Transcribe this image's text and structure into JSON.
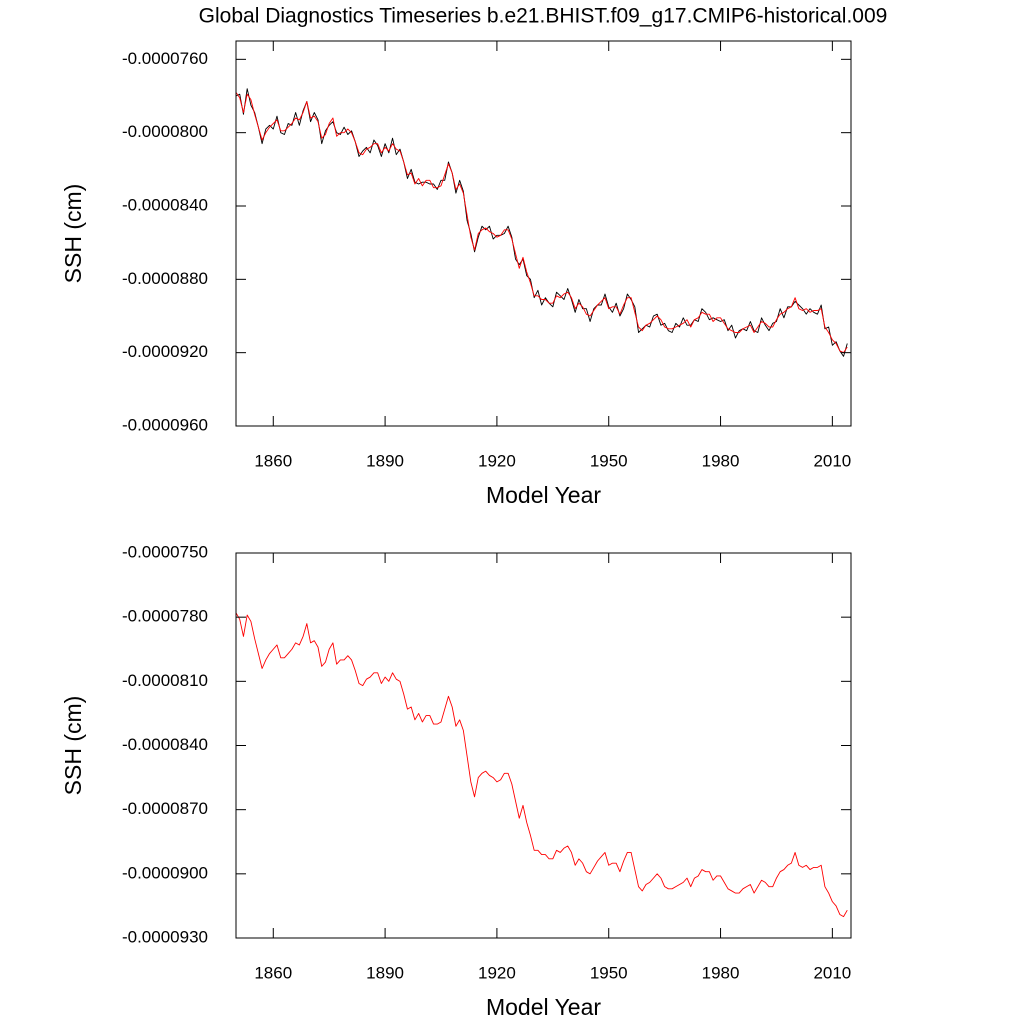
{
  "chart_data": [
    {
      "type": "line",
      "title": "Global Diagnostics Timeseries b.e21.BHIST.f09_g17.CMIP6-historical.009",
      "xlabel": "Model Year",
      "ylabel": "SSH (cm)",
      "xlim": [
        1850,
        2015
      ],
      "xticks": [
        1860,
        1890,
        1920,
        1950,
        1980,
        2010
      ],
      "ylim": [
        -9.6e-05,
        -7.5e-05
      ],
      "yticks": [
        {
          "value": -7.6e-05,
          "label": "-0.0000760"
        },
        {
          "value": -8e-05,
          "label": "-0.0000800"
        },
        {
          "value": -8.4e-05,
          "label": "-0.0000840"
        },
        {
          "value": -8.8e-05,
          "label": "-0.0000880"
        },
        {
          "value": -9.2e-05,
          "label": "-0.0000920"
        },
        {
          "value": -9.6e-05,
          "label": "-0.0000960"
        }
      ],
      "x": [
        1850,
        1851,
        1852,
        1853,
        1854,
        1855,
        1856,
        1857,
        1858,
        1859,
        1860,
        1861,
        1862,
        1863,
        1864,
        1865,
        1866,
        1867,
        1868,
        1869,
        1870,
        1871,
        1872,
        1873,
        1874,
        1875,
        1876,
        1877,
        1878,
        1879,
        1880,
        1881,
        1882,
        1883,
        1884,
        1885,
        1886,
        1887,
        1888,
        1889,
        1890,
        1891,
        1892,
        1893,
        1894,
        1895,
        1896,
        1897,
        1898,
        1899,
        1900,
        1901,
        1902,
        1903,
        1904,
        1905,
        1906,
        1907,
        1908,
        1909,
        1910,
        1911,
        1912,
        1913,
        1914,
        1915,
        1916,
        1917,
        1918,
        1919,
        1920,
        1921,
        1922,
        1923,
        1924,
        1925,
        1926,
        1927,
        1928,
        1929,
        1930,
        1931,
        1932,
        1933,
        1934,
        1935,
        1936,
        1937,
        1938,
        1939,
        1940,
        1941,
        1942,
        1943,
        1944,
        1945,
        1946,
        1947,
        1948,
        1949,
        1950,
        1951,
        1952,
        1953,
        1954,
        1955,
        1956,
        1957,
        1958,
        1959,
        1960,
        1961,
        1962,
        1963,
        1964,
        1965,
        1966,
        1967,
        1968,
        1969,
        1970,
        1971,
        1972,
        1973,
        1974,
        1975,
        1976,
        1977,
        1978,
        1979,
        1980,
        1981,
        1982,
        1983,
        1984,
        1985,
        1986,
        1987,
        1988,
        1989,
        1990,
        1991,
        1992,
        1993,
        1994,
        1995,
        1996,
        1997,
        1998,
        1999,
        2000,
        2001,
        2002,
        2003,
        2004,
        2005,
        2006,
        2007,
        2008,
        2009,
        2010,
        2011,
        2012,
        2013,
        2014
      ],
      "series": [
        {
          "color": "#000000",
          "values": [
            -7.8e-05,
            -7.79e-05,
            -7.9e-05,
            -7.76e-05,
            -7.85e-05,
            -7.89e-05,
            -7.97e-05,
            -8.06e-05,
            -7.98e-05,
            -7.96e-05,
            -7.98e-05,
            -7.91e-05,
            -8e-05,
            -8.01e-05,
            -7.95e-05,
            -7.96e-05,
            -7.89e-05,
            -7.96e-05,
            -7.88e-05,
            -7.83e-05,
            -7.94e-05,
            -7.89e-05,
            -7.93e-05,
            -8.06e-05,
            -7.99e-05,
            -7.96e-05,
            -7.94e-05,
            -8e-05,
            -8.01e-05,
            -7.97e-05,
            -8.01e-05,
            -7.99e-05,
            -8.05e-05,
            -8.13e-05,
            -8.1e-05,
            -8.08e-05,
            -8.11e-05,
            -8.04e-05,
            -8.07e-05,
            -8.13e-05,
            -8.06e-05,
            -8.11e-05,
            -8.03e-05,
            -8.12e-05,
            -8.09e-05,
            -8.16e-05,
            -8.25e-05,
            -8.2e-05,
            -8.27e-05,
            -8.28e-05,
            -8.27e-05,
            -8.27e-05,
            -8.28e-05,
            -8.28e-05,
            -8.31e-05,
            -8.26e-05,
            -8.26e-05,
            -8.16e-05,
            -8.22e-05,
            -8.33e-05,
            -8.26e-05,
            -8.32e-05,
            -8.48e-05,
            -8.55e-05,
            -8.65e-05,
            -8.57e-05,
            -8.51e-05,
            -8.53e-05,
            -8.51e-05,
            -8.58e-05,
            -8.56e-05,
            -8.56e-05,
            -8.55e-05,
            -8.51e-05,
            -8.57e-05,
            -8.69e-05,
            -8.72e-05,
            -8.69e-05,
            -8.78e-05,
            -8.8e-05,
            -8.9e-05,
            -8.86e-05,
            -8.94e-05,
            -8.9e-05,
            -8.93e-05,
            -8.95e-05,
            -8.87e-05,
            -8.89e-05,
            -8.91e-05,
            -8.85e-05,
            -8.91e-05,
            -8.98e-05,
            -8.91e-05,
            -8.96e-05,
            -8.96e-05,
            -9.03e-05,
            -8.96e-05,
            -8.94e-05,
            -8.94e-05,
            -8.88e-05,
            -8.95e-05,
            -8.98e-05,
            -8.93e-05,
            -9e-05,
            -8.96e-05,
            -8.88e-05,
            -8.91e-05,
            -8.95e-05,
            -9.09e-05,
            -9.07e-05,
            -9.05e-05,
            -9.06e-05,
            -9e-05,
            -8.99e-05,
            -9.05e-05,
            -9.04e-05,
            -9.08e-05,
            -9.09e-05,
            -9.04e-05,
            -9.06e-05,
            -9.01e-05,
            -9.05e-05,
            -9.05e-05,
            -9.02e-05,
            -9.03e-05,
            -8.96e-05,
            -8.98e-05,
            -9.02e-05,
            -9.01e-05,
            -9.02e-05,
            -9.03e-05,
            -9.02e-05,
            -9.08e-05,
            -9.05e-05,
            -9.12e-05,
            -9.08e-05,
            -9.07e-05,
            -9.08e-05,
            -9.03e-05,
            -9.08e-05,
            -9.09e-05,
            -9.01e-05,
            -9.05e-05,
            -9.08e-05,
            -9.04e-05,
            -9.03e-05,
            -8.96e-05,
            -9.01e-05,
            -8.95e-05,
            -8.95e-05,
            -8.92e-05,
            -8.94e-05,
            -8.96e-05,
            -8.99e-05,
            -8.96e-05,
            -8.98e-05,
            -8.99e-05,
            -8.94e-05,
            -9.07e-05,
            -9.06e-05,
            -9.16e-05,
            -9.14e-05,
            -9.19e-05,
            -9.22e-05,
            -9.15e-05
          ]
        },
        {
          "color": "#ff0000",
          "values": [
            -7.78e-05,
            -7.81e-05,
            -7.89e-05,
            -7.79e-05,
            -7.82e-05,
            -7.9e-05,
            -7.97e-05,
            -8.04e-05,
            -8e-05,
            -7.97e-05,
            -7.95e-05,
            -7.93e-05,
            -7.99e-05,
            -7.99e-05,
            -7.97e-05,
            -7.95e-05,
            -7.92e-05,
            -7.93e-05,
            -7.89e-05,
            -7.83e-05,
            -7.92e-05,
            -7.91e-05,
            -7.94e-05,
            -8.03e-05,
            -8.01e-05,
            -7.95e-05,
            -7.92e-05,
            -8.02e-05,
            -8e-05,
            -8e-05,
            -7.98e-05,
            -8e-05,
            -8.05e-05,
            -8.11e-05,
            -8.12e-05,
            -8.09e-05,
            -8.08e-05,
            -8.06e-05,
            -8.06e-05,
            -8.11e-05,
            -8.08e-05,
            -8.1e-05,
            -8.06e-05,
            -8.09e-05,
            -8.1e-05,
            -8.16e-05,
            -8.23e-05,
            -8.22e-05,
            -8.28e-05,
            -8.25e-05,
            -8.29e-05,
            -8.26e-05,
            -8.26e-05,
            -8.3e-05,
            -8.3e-05,
            -8.29e-05,
            -8.23e-05,
            -8.17e-05,
            -8.22e-05,
            -8.31e-05,
            -8.28e-05,
            -8.33e-05,
            -8.45e-05,
            -8.57e-05,
            -8.64e-05,
            -8.55e-05,
            -8.53e-05,
            -8.52e-05,
            -8.54e-05,
            -8.55e-05,
            -8.57e-05,
            -8.56e-05,
            -8.53e-05,
            -8.53e-05,
            -8.58e-05,
            -8.66e-05,
            -8.74e-05,
            -8.68e-05,
            -8.76e-05,
            -8.82e-05,
            -8.89e-05,
            -8.89e-05,
            -8.91e-05,
            -8.91e-05,
            -8.93e-05,
            -8.93e-05,
            -8.89e-05,
            -8.9e-05,
            -8.88e-05,
            -8.87e-05,
            -8.9e-05,
            -8.96e-05,
            -8.93e-05,
            -8.95e-05,
            -8.99e-05,
            -9e-05,
            -8.97e-05,
            -8.94e-05,
            -8.92e-05,
            -8.9e-05,
            -8.96e-05,
            -8.95e-05,
            -8.95e-05,
            -8.99e-05,
            -8.94e-05,
            -8.9e-05,
            -8.9e-05,
            -8.98e-05,
            -9.06e-05,
            -9.08e-05,
            -9.05e-05,
            -9.04e-05,
            -9.02e-05,
            -9e-05,
            -9.02e-05,
            -9.06e-05,
            -9.07e-05,
            -9.07e-05,
            -9.06e-05,
            -9.05e-05,
            -9.04e-05,
            -9.02e-05,
            -9.06e-05,
            -9.02e-05,
            -9.01e-05,
            -8.98e-05,
            -8.99e-05,
            -8.99e-05,
            -9.03e-05,
            -9.01e-05,
            -9.01e-05,
            -9.04e-05,
            -9.07e-05,
            -9.08e-05,
            -9.09e-05,
            -9.09e-05,
            -9.07e-05,
            -9.06e-05,
            -9.05e-05,
            -9.09e-05,
            -9.06e-05,
            -9.03e-05,
            -9.04e-05,
            -9.06e-05,
            -9.06e-05,
            -9.02e-05,
            -8.99e-05,
            -8.98e-05,
            -8.96e-05,
            -8.95e-05,
            -8.9e-05,
            -8.96e-05,
            -8.97e-05,
            -8.96e-05,
            -8.98e-05,
            -8.97e-05,
            -8.97e-05,
            -8.96e-05,
            -9.06e-05,
            -9.09e-05,
            -9.13e-05,
            -9.15e-05,
            -9.19e-05,
            -9.2e-05,
            -9.17e-05
          ]
        }
      ]
    },
    {
      "type": "line",
      "xlabel": "Model Year",
      "ylabel": "SSH (cm)",
      "xlim": [
        1850,
        2015
      ],
      "xticks": [
        1860,
        1890,
        1920,
        1950,
        1980,
        2010
      ],
      "ylim": [
        -9.3e-05,
        -7.5e-05
      ],
      "yticks": [
        {
          "value": -7.5e-05,
          "label": "-0.0000750"
        },
        {
          "value": -7.8e-05,
          "label": "-0.0000780"
        },
        {
          "value": -8.1e-05,
          "label": "-0.0000810"
        },
        {
          "value": -8.4e-05,
          "label": "-0.0000840"
        },
        {
          "value": -8.7e-05,
          "label": "-0.0000870"
        },
        {
          "value": -9e-05,
          "label": "-0.0000900"
        },
        {
          "value": -9.3e-05,
          "label": "-0.0000930"
        }
      ],
      "x": [
        1850,
        1851,
        1852,
        1853,
        1854,
        1855,
        1856,
        1857,
        1858,
        1859,
        1860,
        1861,
        1862,
        1863,
        1864,
        1865,
        1866,
        1867,
        1868,
        1869,
        1870,
        1871,
        1872,
        1873,
        1874,
        1875,
        1876,
        1877,
        1878,
        1879,
        1880,
        1881,
        1882,
        1883,
        1884,
        1885,
        1886,
        1887,
        1888,
        1889,
        1890,
        1891,
        1892,
        1893,
        1894,
        1895,
        1896,
        1897,
        1898,
        1899,
        1900,
        1901,
        1902,
        1903,
        1904,
        1905,
        1906,
        1907,
        1908,
        1909,
        1910,
        1911,
        1912,
        1913,
        1914,
        1915,
        1916,
        1917,
        1918,
        1919,
        1920,
        1921,
        1922,
        1923,
        1924,
        1925,
        1926,
        1927,
        1928,
        1929,
        1930,
        1931,
        1932,
        1933,
        1934,
        1935,
        1936,
        1937,
        1938,
        1939,
        1940,
        1941,
        1942,
        1943,
        1944,
        1945,
        1946,
        1947,
        1948,
        1949,
        1950,
        1951,
        1952,
        1953,
        1954,
        1955,
        1956,
        1957,
        1958,
        1959,
        1960,
        1961,
        1962,
        1963,
        1964,
        1965,
        1966,
        1967,
        1968,
        1969,
        1970,
        1971,
        1972,
        1973,
        1974,
        1975,
        1976,
        1977,
        1978,
        1979,
        1980,
        1981,
        1982,
        1983,
        1984,
        1985,
        1986,
        1987,
        1988,
        1989,
        1990,
        1991,
        1992,
        1993,
        1994,
        1995,
        1996,
        1997,
        1998,
        1999,
        2000,
        2001,
        2002,
        2003,
        2004,
        2005,
        2006,
        2007,
        2008,
        2009,
        2010,
        2011,
        2012,
        2013,
        2014
      ],
      "series": [
        {
          "color": "#ff0000",
          "values": [
            -7.78e-05,
            -7.81e-05,
            -7.89e-05,
            -7.79e-05,
            -7.82e-05,
            -7.9e-05,
            -7.97e-05,
            -8.04e-05,
            -8e-05,
            -7.97e-05,
            -7.95e-05,
            -7.93e-05,
            -7.99e-05,
            -7.99e-05,
            -7.97e-05,
            -7.95e-05,
            -7.92e-05,
            -7.93e-05,
            -7.89e-05,
            -7.83e-05,
            -7.92e-05,
            -7.91e-05,
            -7.94e-05,
            -8.03e-05,
            -8.01e-05,
            -7.95e-05,
            -7.92e-05,
            -8.02e-05,
            -8e-05,
            -8e-05,
            -7.98e-05,
            -8e-05,
            -8.05e-05,
            -8.11e-05,
            -8.12e-05,
            -8.09e-05,
            -8.08e-05,
            -8.06e-05,
            -8.06e-05,
            -8.11e-05,
            -8.08e-05,
            -8.1e-05,
            -8.06e-05,
            -8.09e-05,
            -8.1e-05,
            -8.16e-05,
            -8.23e-05,
            -8.22e-05,
            -8.28e-05,
            -8.25e-05,
            -8.29e-05,
            -8.26e-05,
            -8.26e-05,
            -8.3e-05,
            -8.3e-05,
            -8.29e-05,
            -8.23e-05,
            -8.17e-05,
            -8.22e-05,
            -8.31e-05,
            -8.28e-05,
            -8.33e-05,
            -8.45e-05,
            -8.57e-05,
            -8.64e-05,
            -8.55e-05,
            -8.53e-05,
            -8.52e-05,
            -8.54e-05,
            -8.55e-05,
            -8.57e-05,
            -8.56e-05,
            -8.53e-05,
            -8.53e-05,
            -8.58e-05,
            -8.66e-05,
            -8.74e-05,
            -8.68e-05,
            -8.76e-05,
            -8.82e-05,
            -8.89e-05,
            -8.89e-05,
            -8.91e-05,
            -8.91e-05,
            -8.93e-05,
            -8.93e-05,
            -8.89e-05,
            -8.9e-05,
            -8.88e-05,
            -8.87e-05,
            -8.9e-05,
            -8.96e-05,
            -8.93e-05,
            -8.95e-05,
            -8.99e-05,
            -9e-05,
            -8.97e-05,
            -8.94e-05,
            -8.92e-05,
            -8.9e-05,
            -8.96e-05,
            -8.95e-05,
            -8.95e-05,
            -8.99e-05,
            -8.94e-05,
            -8.9e-05,
            -8.9e-05,
            -8.98e-05,
            -9.06e-05,
            -9.08e-05,
            -9.05e-05,
            -9.04e-05,
            -9.02e-05,
            -9e-05,
            -9.02e-05,
            -9.06e-05,
            -9.07e-05,
            -9.07e-05,
            -9.06e-05,
            -9.05e-05,
            -9.04e-05,
            -9.02e-05,
            -9.06e-05,
            -9.02e-05,
            -9.01e-05,
            -8.98e-05,
            -8.99e-05,
            -8.99e-05,
            -9.03e-05,
            -9.01e-05,
            -9.01e-05,
            -9.04e-05,
            -9.07e-05,
            -9.08e-05,
            -9.09e-05,
            -9.09e-05,
            -9.07e-05,
            -9.06e-05,
            -9.05e-05,
            -9.09e-05,
            -9.06e-05,
            -9.03e-05,
            -9.04e-05,
            -9.06e-05,
            -9.06e-05,
            -9.02e-05,
            -8.99e-05,
            -8.98e-05,
            -8.96e-05,
            -8.95e-05,
            -8.9e-05,
            -8.96e-05,
            -8.97e-05,
            -8.96e-05,
            -8.98e-05,
            -8.97e-05,
            -8.97e-05,
            -8.96e-05,
            -9.06e-05,
            -9.09e-05,
            -9.13e-05,
            -9.15e-05,
            -9.19e-05,
            -9.2e-05,
            -9.17e-05
          ]
        }
      ]
    }
  ]
}
